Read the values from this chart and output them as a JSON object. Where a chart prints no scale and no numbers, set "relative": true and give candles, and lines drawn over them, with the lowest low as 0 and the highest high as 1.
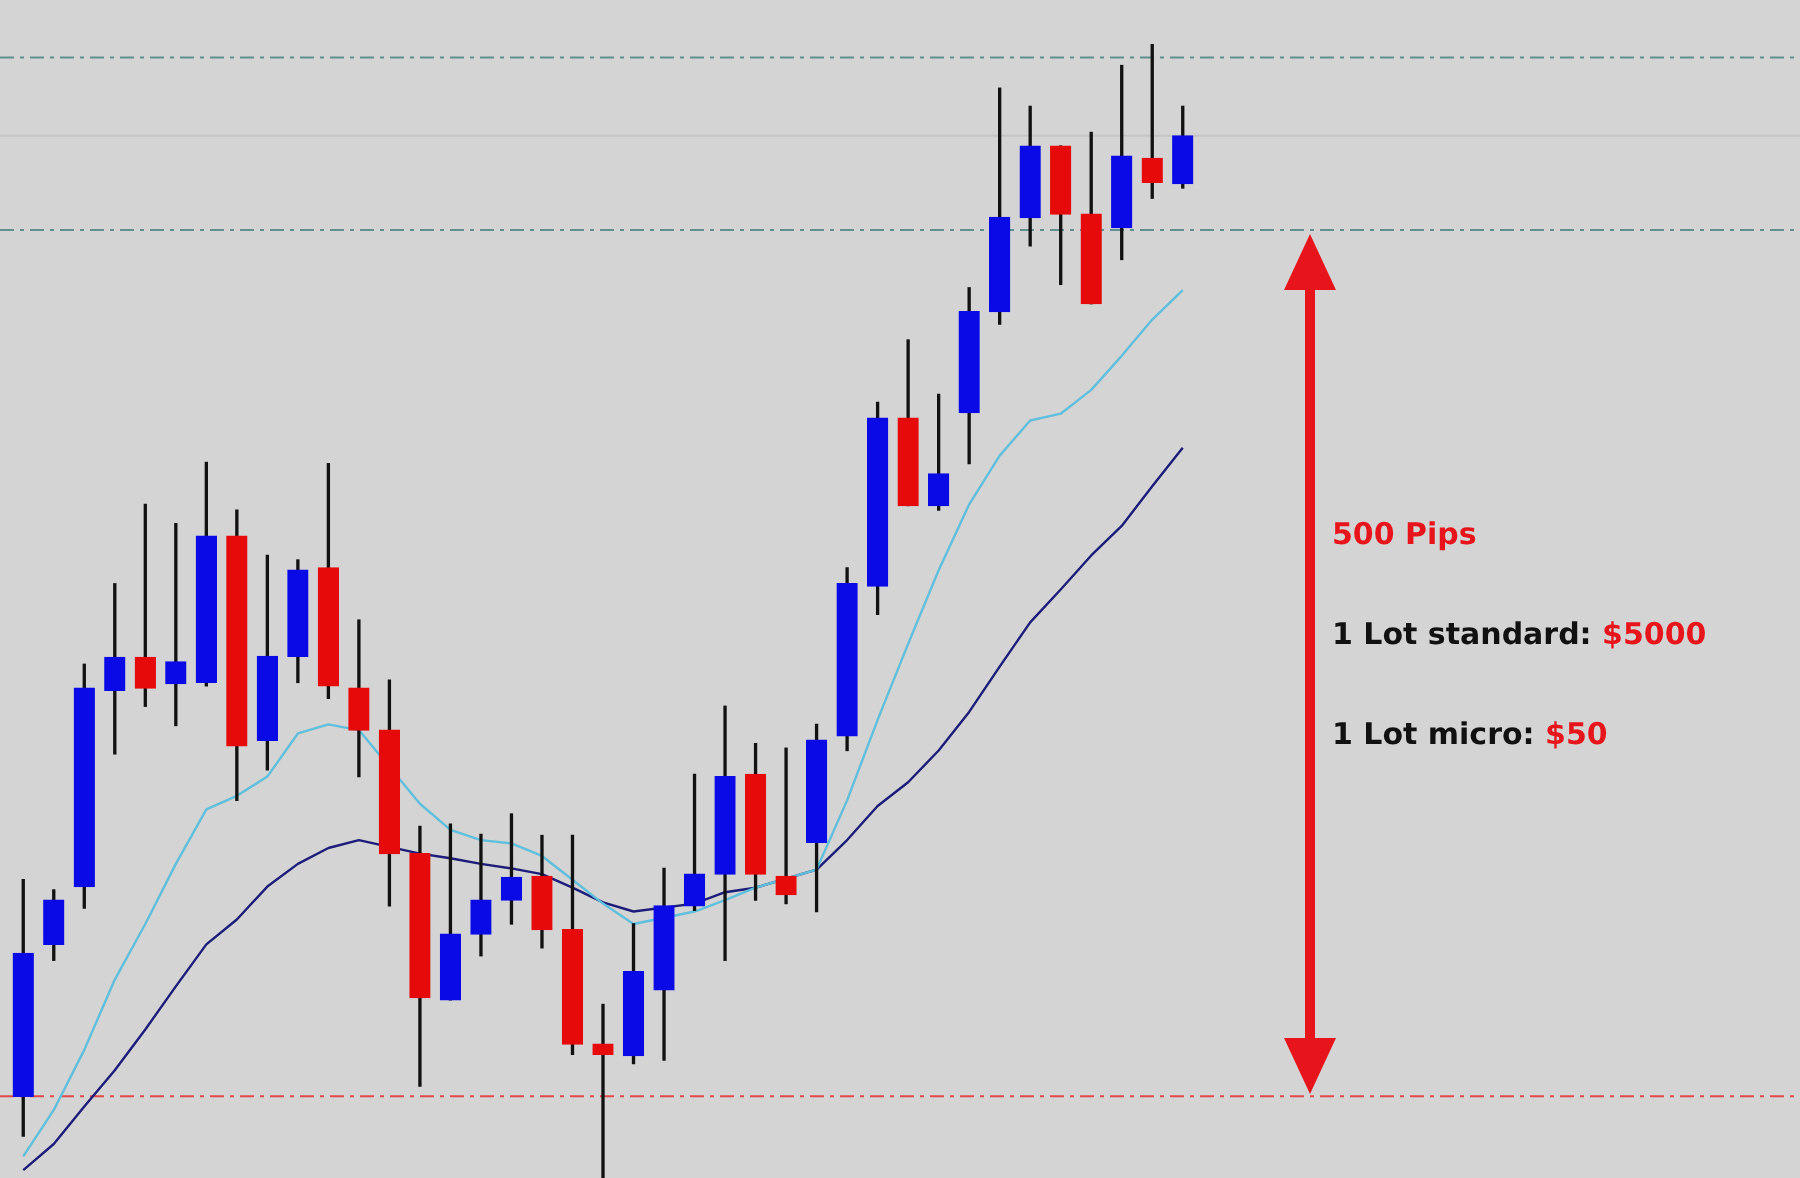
{
  "chart_data": {
    "type": "candlestick",
    "relative": true,
    "categories": [
      null,
      null,
      null,
      null,
      null,
      null,
      null,
      null,
      null,
      null,
      null,
      null,
      null,
      null,
      null,
      null,
      null,
      null,
      null,
      null,
      null,
      null,
      null,
      null,
      null,
      null,
      null,
      null,
      null,
      null,
      null,
      null,
      null,
      null,
      null,
      null,
      null,
      null,
      null
    ],
    "ohlc": [
      [
        0.072,
        0.263,
        0.037,
        0.198
      ],
      [
        0.206,
        0.254,
        0.192,
        0.245
      ],
      [
        0.257,
        0.453,
        0.238,
        0.432
      ],
      [
        0.43,
        0.524,
        0.374,
        0.459
      ],
      [
        0.459,
        0.594,
        0.416,
        0.432
      ],
      [
        0.436,
        0.577,
        0.399,
        0.455
      ],
      [
        0.437,
        0.631,
        0.434,
        0.566
      ],
      [
        0.566,
        0.589,
        0.333,
        0.381
      ],
      [
        0.386,
        0.549,
        0.36,
        0.46
      ],
      [
        0.46,
        0.545,
        0.437,
        0.536
      ],
      [
        0.538,
        0.63,
        0.423,
        0.434
      ],
      [
        0.432,
        0.492,
        0.354,
        0.395
      ],
      [
        0.395,
        0.439,
        0.24,
        0.286
      ],
      [
        0.286,
        0.31,
        0.081,
        0.159
      ],
      [
        0.157,
        0.312,
        0.157,
        0.215
      ],
      [
        0.215,
        0.303,
        0.196,
        0.245
      ],
      [
        0.245,
        0.321,
        0.224,
        0.265
      ],
      [
        0.266,
        0.302,
        0.203,
        0.219
      ],
      [
        0.219,
        0.302,
        0.109,
        0.118
      ],
      [
        0.118,
        0.153,
        0,
        0.109
      ],
      [
        0.108,
        0.224,
        0.101,
        0.182
      ],
      [
        0.166,
        0.273,
        0.104,
        0.24
      ],
      [
        0.24,
        0.356,
        0.236,
        0.268
      ],
      [
        0.268,
        0.416,
        0.192,
        0.354
      ],
      [
        0.356,
        0.383,
        0.245,
        0.268
      ],
      [
        0.266,
        0.379,
        0.242,
        0.25
      ],
      [
        0.296,
        0.4,
        0.235,
        0.386
      ],
      [
        0.39,
        0.538,
        0.377,
        0.524
      ],
      [
        0.522,
        0.684,
        0.497,
        0.67
      ],
      [
        0.67,
        0.739,
        0.593,
        0.593
      ],
      [
        0.593,
        0.691,
        0.589,
        0.621
      ],
      [
        0.675,
        0.785,
        0.63,
        0.764
      ],
      [
        0.764,
        0.961,
        0.753,
        0.847
      ],
      [
        0.847,
        0.945,
        0.822,
        0.91
      ],
      [
        0.91,
        0.91,
        0.788,
        0.85
      ],
      [
        0.85,
        0.922,
        0.771,
        0.771
      ],
      [
        0.838,
        0.981,
        0.81,
        0.901
      ],
      [
        0.899,
        1,
        0.864,
        0.878
      ],
      [
        0.877,
        0.945,
        0.873,
        0.919
      ]
    ],
    "colors": [
      "#0a0ae6",
      "#0a0ae6",
      "#0a0ae6",
      "#0a0ae6",
      "#e60a0a",
      "#0a0ae6",
      "#0a0ae6",
      "#e60a0a",
      "#0a0ae6",
      "#0a0ae6",
      "#e60a0a",
      "#e60a0a",
      "#e60a0a",
      "#e60a0a",
      "#0a0ae6",
      "#0a0ae6",
      "#0a0ae6",
      "#e60a0a",
      "#e60a0a",
      "#e60a0a",
      "#0a0ae6",
      "#0a0ae6",
      "#0a0ae6",
      "#0a0ae6",
      "#e60a0a",
      "#e60a0a",
      "#0a0ae6",
      "#0a0ae6",
      "#0a0ae6",
      "#e60a0a",
      "#0a0ae6",
      "#0a0ae6",
      "#0a0ae6",
      "#0a0ae6",
      "#e60a0a",
      "#e60a0a",
      "#0a0ae6",
      "#e60a0a",
      "#0a0ae6"
    ],
    "series": [
      {
        "type": "line",
        "color": "#5fbfdc",
        "values": [
          0.019,
          0.06,
          0.113,
          0.175,
          0.224,
          0.277,
          0.325,
          0.337,
          0.354,
          0.392,
          0.4,
          0.395,
          null,
          0.33,
          0.307,
          0.298,
          0.295,
          0.284,
          0.263,
          0.242,
          0.224,
          null,
          0.235,
          0.245,
          0.256,
          null,
          0.272,
          0.333,
          0.404,
          0.471,
          0.536,
          0.594,
          0.637,
          0.668,
          0.674,
          0.695,
          0.725,
          0.757,
          0.783
        ]
      },
      {
        "type": "line",
        "color": "#1c1c7a",
        "values": [
          0.007,
          0.03,
          0.063,
          0.095,
          0.131,
          0.169,
          0.206,
          0.228,
          0.257,
          0.277,
          0.291,
          0.298,
          null,
          0.286,
          0.282,
          0.277,
          0.273,
          0.268,
          0.256,
          0.243,
          0.235,
          null,
          0.242,
          0.252,
          0.256,
          null,
          0.272,
          0.298,
          0.328,
          0.349,
          0.377,
          0.411,
          0.451,
          0.49,
          0.519,
          0.549,
          0.575,
          0.61,
          0.644
        ]
      }
    ],
    "ref_lines": [
      {
        "axis": "y",
        "value": 0.988,
        "color": "#5f8f8f",
        "line_style": "dashed"
      },
      {
        "axis": "y",
        "value": 0.919,
        "color": "#c4c4c4",
        "line_style": "solid"
      },
      {
        "axis": "y",
        "value": 0.836,
        "color": "#5f8f8f",
        "line_style": "dashed"
      },
      {
        "axis": "y",
        "value": 0.072,
        "color": "#e04a4a",
        "line_style": "dashed"
      }
    ],
    "annotations": [
      "500 Pips",
      "1 Lot standard: $5000",
      "1 Lot micro: $50"
    ]
  }
}
